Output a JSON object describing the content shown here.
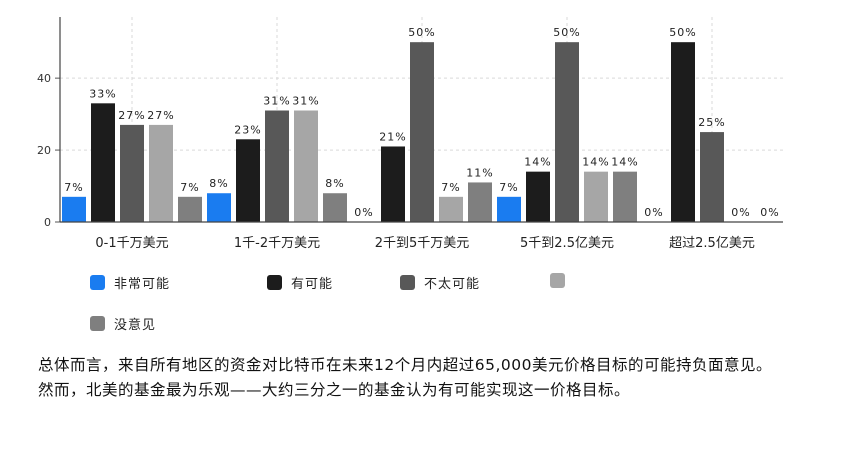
{
  "chart_data": {
    "type": "bar",
    "categories": [
      "0-1千万美元",
      "1千-2千万美元",
      "2千到5千万美元",
      "5千到2.5亿美元",
      "超过2.5亿美元"
    ],
    "series": [
      {
        "name": "非常可能",
        "color": "#1a7cf0",
        "values": [
          7,
          8,
          0,
          7,
          0
        ],
        "labels": [
          "7%",
          "8%",
          "0%",
          "7%",
          "0%"
        ]
      },
      {
        "name": "有可能",
        "color": "#1c1c1c",
        "values": [
          33,
          23,
          21,
          14,
          50
        ],
        "labels": [
          "33%",
          "23%",
          "21%",
          "14%",
          "50%"
        ]
      },
      {
        "name": "不太可能",
        "color": "#585858",
        "values": [
          27,
          31,
          50,
          50,
          25
        ],
        "labels": [
          "27%",
          "31%",
          "50%",
          "50%",
          "25%"
        ]
      },
      {
        "name": "",
        "color": "#a6a6a6",
        "values": [
          27,
          31,
          7,
          14,
          0
        ],
        "labels": [
          "27%",
          "31%",
          "7%",
          "14%",
          "0%"
        ]
      },
      {
        "name": "没意见",
        "color": "#7f7f7f",
        "values": [
          7,
          8,
          11,
          14,
          0
        ],
        "labels": [
          "7%",
          "8%",
          "11%",
          "14%",
          "0%"
        ]
      }
    ],
    "yticks": [
      0,
      20,
      40
    ],
    "ylim": [
      0,
      57
    ],
    "grid": true,
    "legend_position": "bottom"
  },
  "note": {
    "line1": "总体而言，来自所有地区的资金对比特币在未来12个月内超过65,000美元价格目标的可能持负面意见。",
    "line2": "然而，北美的基金最为乐观——大约三分之一的基金认为有可能实现这一价格目标。"
  }
}
